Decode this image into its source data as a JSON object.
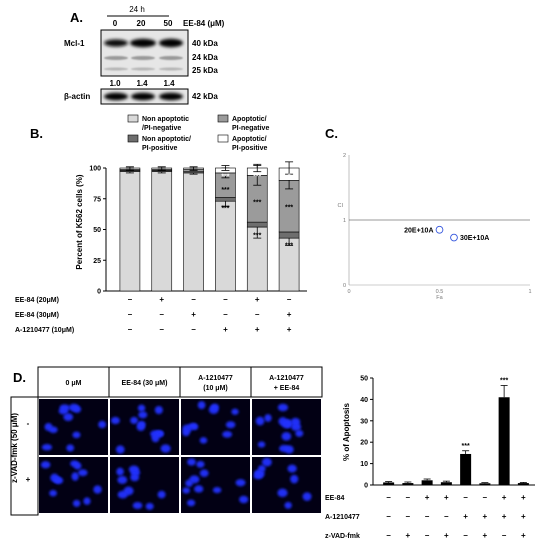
{
  "panel_labels": {
    "a": "A.",
    "b": "B.",
    "c": "C.",
    "d": "D."
  },
  "panel_a": {
    "time": "24 h",
    "treatment": "EE-84 (μM)",
    "doses": [
      "0",
      "20",
      "50"
    ],
    "mcl1_label": "Mcl-1",
    "mw_markers": [
      "40 kDa",
      "24 kDa",
      "25 kDa"
    ],
    "ratios": [
      "1.0",
      "1.4",
      "1.4"
    ],
    "actin_label": "β-actin",
    "actin_mw": "42 kDa"
  },
  "panel_b": {
    "ylabel": "Percent of K562 cells (%)",
    "yticks": [
      "0",
      "25",
      "50",
      "75",
      "100"
    ],
    "legend": [
      {
        "label": [
          "Non apoptotic",
          "/PI-negative"
        ],
        "color": "#d9d9d9"
      },
      {
        "label": [
          "Apoptotic/",
          "PI-negative"
        ],
        "color": "#9b9b9b"
      },
      {
        "label": [
          "Non apoptotic/",
          "PI-positive"
        ],
        "color": "#6e6e6e"
      },
      {
        "label": [
          "Apoptotic/",
          "PI-positive"
        ],
        "color": "#ffffff"
      }
    ],
    "conditions": [
      {
        "label": "EE-84 (20μM)",
        "signs": [
          "–",
          "+",
          "–",
          "–",
          "+",
          "–"
        ]
      },
      {
        "label": "EE-84 (30μM)",
        "signs": [
          "–",
          "–",
          "+",
          "–",
          "–",
          "+"
        ]
      },
      {
        "label": "A-1210477  (10μM)",
        "signs": [
          "–",
          "–",
          "–",
          "+",
          "+",
          "+"
        ]
      }
    ],
    "significance": "***",
    "annotations": [
      {
        "bar": 3,
        "y": 93,
        "text": "***"
      },
      {
        "bar": 3,
        "y": 82,
        "text": "***"
      },
      {
        "bar": 3,
        "y": 67,
        "text": "***"
      },
      {
        "bar": 4,
        "y": 93,
        "text": "***"
      },
      {
        "bar": 4,
        "y": 72,
        "text": "***"
      },
      {
        "bar": 4,
        "y": 45,
        "text": "***"
      },
      {
        "bar": 5,
        "y": 93,
        "text": "*"
      },
      {
        "bar": 5,
        "y": 68,
        "text": "***"
      },
      {
        "bar": 5,
        "y": 37,
        "text": "***"
      }
    ]
  },
  "panel_c": {
    "ylabel": "CI",
    "xlabel": "Fa",
    "yticks": [
      "2",
      "1",
      "0"
    ],
    "xticks": [
      "0",
      "0.5",
      "1"
    ],
    "points": [
      {
        "label": "20E+10A",
        "fa": 0.5,
        "ci": 0.85
      },
      {
        "label": "30E+10A",
        "fa": 0.58,
        "ci": 0.73
      }
    ],
    "reference_ci": 1
  },
  "panel_d": {
    "col_headers": [
      [
        "0 μM"
      ],
      [
        "EE-84 (30 μM)"
      ],
      [
        "A-1210477",
        "(10 μM)"
      ],
      [
        "A-1210477",
        "+ EE-84"
      ]
    ],
    "row_title": "z-VAD-fmk (50 μM)",
    "row_signs": [
      "-",
      "+"
    ],
    "ylabel": "% of Apoptosis",
    "yticks": [
      "0",
      "10",
      "20",
      "30",
      "40",
      "50"
    ],
    "conditions": [
      {
        "label": "EE-84",
        "signs": [
          "–",
          "–",
          "+",
          "+",
          "–",
          "–",
          "+",
          "+"
        ]
      },
      {
        "label": "A-1210477",
        "signs": [
          "–",
          "–",
          "–",
          "–",
          "+",
          "+",
          "+",
          "+"
        ]
      },
      {
        "label": "z-VAD-fmk",
        "signs": [
          "–",
          "+",
          "–",
          "+",
          "–",
          "+",
          "–",
          "+"
        ]
      }
    ],
    "significance": "***"
  },
  "chart_data": [
    {
      "type": "bar",
      "panel": "B",
      "stacked": true,
      "ylabel": "Percent of K562 cells (%)",
      "ylim": [
        0,
        100
      ],
      "series": [
        {
          "name": "Non apoptotic/PI-negative",
          "values": [
            97,
            97,
            96,
            73,
            52,
            43
          ],
          "errors": [
            1,
            1,
            1,
            4,
            9,
            6
          ]
        },
        {
          "name": "Non apoptotic/PI-positive",
          "values": [
            1,
            1,
            1,
            3,
            4,
            5
          ]
        },
        {
          "name": "Apoptotic/PI-negative",
          "values": [
            1,
            1,
            2,
            20,
            38,
            42
          ],
          "errors": [
            1,
            1,
            1,
            4,
            8,
            7
          ]
        },
        {
          "name": "Apoptotic/PI-positive",
          "values": [
            1,
            1,
            1,
            4,
            6,
            10
          ],
          "errors": [
            1,
            1,
            1,
            2,
            3,
            5
          ]
        }
      ]
    },
    {
      "type": "scatter",
      "panel": "C",
      "xlabel": "Fa",
      "ylabel": "CI",
      "xlim": [
        0,
        1
      ],
      "ylim": [
        0,
        2
      ],
      "points": [
        {
          "name": "20E+10A",
          "x": 0.5,
          "y": 0.85
        },
        {
          "name": "30E+10A",
          "x": 0.58,
          "y": 0.73
        }
      ]
    },
    {
      "type": "bar",
      "panel": "D",
      "ylabel": "% of Apoptosis",
      "ylim": [
        0,
        50
      ],
      "values": [
        1.2,
        0.9,
        2.2,
        1.3,
        14.5,
        0.8,
        41,
        0.9
      ],
      "errors": [
        0.4,
        0.5,
        0.6,
        0.5,
        1.5,
        0.3,
        5.5,
        0.3
      ],
      "significant": [
        4,
        6
      ]
    }
  ]
}
